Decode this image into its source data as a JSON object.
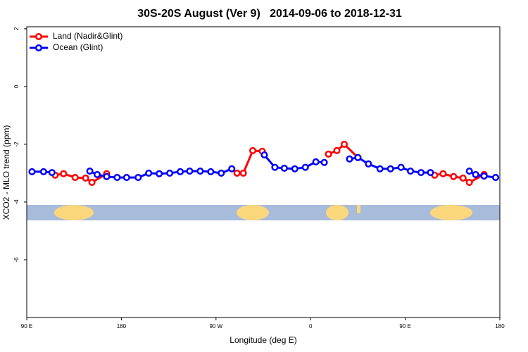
{
  "chart_data": {
    "type": "line",
    "title": "30S-20S August (Ver 9)   2014-09-06 to 2018-12-31",
    "x_label": "Longitude (deg E)",
    "y_label": "XCO2 - MLO trend (ppm)",
    "xlim": [
      90,
      540
    ],
    "xticks": [
      {
        "value": 90,
        "label": "90 E"
      },
      180,
      {
        "value": 270,
        "label": "90 W"
      },
      {
        "value": 360,
        "label": "0"
      },
      {
        "value": 450,
        "label": "90 E"
      },
      {
        "value": 540,
        "label": "180"
      }
    ],
    "ylim": [
      -8,
      2.07
    ],
    "yticks": [
      -6,
      -4,
      -2,
      0,
      2
    ],
    "legend": "top-left",
    "series": [
      {
        "name": "Land (Nadir&Glint)",
        "color": "#ff0000",
        "x": [
          117,
          125,
          136,
          146,
          152,
          166,
          176,
          290,
          296,
          305,
          314,
          345,
          377,
          385,
          392,
          405,
          436,
          478,
          486,
          496,
          505,
          511,
          525
        ],
        "values": [
          -3.07,
          -3.02,
          -3.15,
          -3.17,
          -3.32,
          -3.02,
          null,
          -3.0,
          -3.0,
          -2.22,
          -2.24,
          null,
          -2.34,
          -2.22,
          -2.0,
          -2.46,
          null,
          -3.07,
          -3.02,
          -3.12,
          -3.17,
          -3.32,
          -3.05
        ]
      },
      {
        "name": "Ocean (Glint)",
        "color": "#0000ff",
        "x": [
          95,
          106,
          114,
          136,
          150,
          157,
          166,
          176,
          185,
          196,
          206,
          216,
          226,
          236,
          245,
          255,
          265,
          275,
          285,
          296,
          316,
          326,
          335,
          345,
          355,
          365,
          373,
          385,
          397,
          405,
          415,
          426,
          436,
          446,
          455,
          465,
          474,
          496,
          511,
          517,
          525,
          536
        ],
        "values": [
          -2.95,
          -2.95,
          -2.98,
          null,
          -2.93,
          -3.05,
          -3.12,
          -3.15,
          -3.15,
          -3.15,
          -3.0,
          -3.02,
          -3.0,
          -2.95,
          -2.93,
          -2.93,
          -2.95,
          -3.0,
          -2.85,
          null,
          -2.37,
          -2.8,
          -2.83,
          -2.85,
          -2.8,
          -2.61,
          -2.63,
          null,
          -2.51,
          -2.46,
          -2.68,
          -2.85,
          -2.85,
          -2.8,
          -2.93,
          -2.98,
          -2.98,
          null,
          -2.93,
          -3.05,
          -3.1,
          -3.15
        ]
      }
    ]
  }
}
